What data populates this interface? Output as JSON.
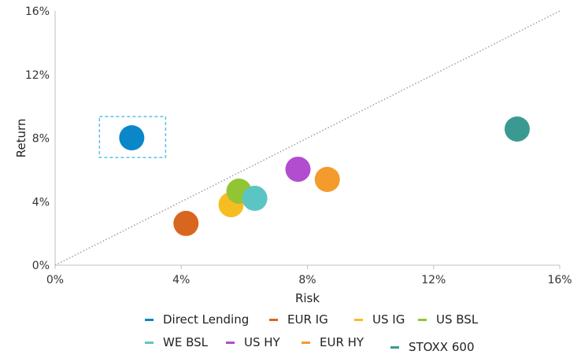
{
  "chart_data": {
    "type": "scatter",
    "xlabel": "Risk",
    "ylabel": "Return",
    "xlim": [
      0,
      16
    ],
    "ylim": [
      0,
      16
    ],
    "xticks": [
      "0%",
      "4%",
      "8%",
      "12%",
      "16%"
    ],
    "yticks": [
      "0%",
      "4%",
      "8%",
      "12%",
      "16%"
    ],
    "xtick_values": [
      0,
      4,
      8,
      12,
      16
    ],
    "ytick_values": [
      0,
      4,
      8,
      12,
      16
    ],
    "grid": false,
    "reference_line": {
      "style": "dotted",
      "from": [
        0,
        0
      ],
      "to": [
        16,
        16
      ],
      "color": "#a0a0a0"
    },
    "highlight_box": {
      "series": "Direct Lending",
      "style": "dashed",
      "color": "#5bc0e8"
    },
    "legend_placement": "bottom",
    "series": [
      {
        "name": "Direct Lending",
        "x": 2.43,
        "y": 8.02,
        "color": "#0a87c8"
      },
      {
        "name": "EUR IG",
        "x": 4.15,
        "y": 2.63,
        "color": "#d9661f"
      },
      {
        "name": "US IG",
        "x": 5.58,
        "y": 3.81,
        "color": "#f6bd22"
      },
      {
        "name": "US BSL",
        "x": 5.83,
        "y": 4.66,
        "color": "#92c533"
      },
      {
        "name": "WE BSL",
        "x": 6.33,
        "y": 4.21,
        "color": "#5bc5c4"
      },
      {
        "name": "US HY",
        "x": 7.7,
        "y": 6.04,
        "color": "#b24dcf"
      },
      {
        "name": "EUR HY",
        "x": 8.63,
        "y": 5.4,
        "color": "#f39b2c"
      },
      {
        "name": "STOXX 600",
        "x": 14.65,
        "y": 8.57,
        "color": "#3a9a92"
      }
    ]
  }
}
